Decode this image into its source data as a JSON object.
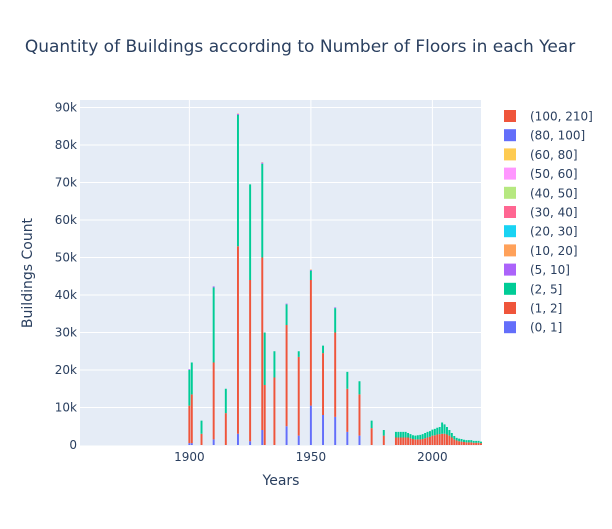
{
  "chart_data": {
    "type": "bar",
    "barmode": "stack",
    "title": "Quantity of Buildings according to Number of Floors in each Year",
    "xlabel": "Years",
    "ylabel": "Buildings Count",
    "xlim": [
      1855,
      2020
    ],
    "ylim": [
      0,
      92000
    ],
    "x_ticks": [
      1900,
      1950,
      2000
    ],
    "y_ticks": [
      0,
      10000,
      20000,
      30000,
      40000,
      50000,
      60000,
      70000,
      80000,
      90000
    ],
    "y_tick_labels": [
      "0",
      "10k",
      "20k",
      "30k",
      "40k",
      "50k",
      "60k",
      "70k",
      "80k",
      "90k"
    ],
    "grid": true,
    "legend_position": "right",
    "series": [
      {
        "name": "(0, 1]",
        "color": "#636efa",
        "points": [
          [
            1900,
            500
          ],
          [
            1901,
            500
          ],
          [
            1910,
            1500
          ],
          [
            1920,
            3000
          ],
          [
            1925,
            1000
          ],
          [
            1930,
            4000
          ],
          [
            1940,
            5000
          ],
          [
            1945,
            2500
          ],
          [
            1950,
            10500
          ],
          [
            1955,
            8000
          ],
          [
            1960,
            7500
          ],
          [
            1965,
            3500
          ],
          [
            1970,
            2500
          ]
        ]
      },
      {
        "name": "(1, 2]",
        "color": "#ef553b",
        "points": [
          [
            1900,
            10000
          ],
          [
            1901,
            13000
          ],
          [
            1905,
            3000
          ],
          [
            1910,
            20500
          ],
          [
            1915,
            8500
          ],
          [
            1920,
            50000
          ],
          [
            1925,
            43000
          ],
          [
            1930,
            46000
          ],
          [
            1931,
            16000
          ],
          [
            1935,
            18000
          ],
          [
            1940,
            27000
          ],
          [
            1945,
            21000
          ],
          [
            1950,
            33500
          ],
          [
            1955,
            16500
          ],
          [
            1960,
            22500
          ],
          [
            1965,
            11500
          ],
          [
            1970,
            11000
          ],
          [
            1975,
            4500
          ],
          [
            1980,
            2500
          ],
          [
            1985,
            2000
          ],
          [
            1986,
            2000
          ],
          [
            1987,
            2000
          ],
          [
            1988,
            2000
          ],
          [
            1989,
            2000
          ],
          [
            1990,
            2000
          ],
          [
            1991,
            1800
          ],
          [
            1992,
            1600
          ],
          [
            1993,
            1500
          ],
          [
            1994,
            1500
          ],
          [
            1995,
            1500
          ],
          [
            1996,
            1600
          ],
          [
            1997,
            1800
          ],
          [
            1998,
            2000
          ],
          [
            1999,
            2200
          ],
          [
            2000,
            2500
          ],
          [
            2001,
            2600
          ],
          [
            2002,
            2800
          ],
          [
            2003,
            2900
          ],
          [
            2004,
            3000
          ],
          [
            2005,
            3000
          ],
          [
            2006,
            2800
          ],
          [
            2007,
            2500
          ],
          [
            2008,
            2000
          ],
          [
            2009,
            1500
          ],
          [
            2010,
            1200
          ],
          [
            2011,
            1000
          ],
          [
            2012,
            900
          ],
          [
            2013,
            800
          ],
          [
            2014,
            700
          ],
          [
            2015,
            700
          ],
          [
            2016,
            700
          ],
          [
            2017,
            600
          ],
          [
            2018,
            600
          ],
          [
            2019,
            600
          ],
          [
            2020,
            500
          ]
        ]
      },
      {
        "name": "(2, 5]",
        "color": "#00cc96",
        "points": [
          [
            1900,
            9500
          ],
          [
            1901,
            8500
          ],
          [
            1905,
            3500
          ],
          [
            1910,
            20000
          ],
          [
            1915,
            6500
          ],
          [
            1920,
            35000
          ],
          [
            1925,
            25500
          ],
          [
            1930,
            25000
          ],
          [
            1931,
            14000
          ],
          [
            1935,
            7000
          ],
          [
            1940,
            5500
          ],
          [
            1945,
            1500
          ],
          [
            1950,
            2500
          ],
          [
            1955,
            2000
          ],
          [
            1960,
            6500
          ],
          [
            1965,
            4500
          ],
          [
            1970,
            3500
          ],
          [
            1975,
            2000
          ],
          [
            1980,
            1500
          ],
          [
            1985,
            1500
          ],
          [
            1986,
            1500
          ],
          [
            1987,
            1500
          ],
          [
            1988,
            1500
          ],
          [
            1989,
            1500
          ],
          [
            1990,
            1200
          ],
          [
            1991,
            1100
          ],
          [
            1992,
            1000
          ],
          [
            1993,
            1000
          ],
          [
            1994,
            1100
          ],
          [
            1995,
            1200
          ],
          [
            1996,
            1300
          ],
          [
            1997,
            1400
          ],
          [
            1998,
            1500
          ],
          [
            1999,
            1500
          ],
          [
            2000,
            1600
          ],
          [
            2001,
            1700
          ],
          [
            2002,
            1800
          ],
          [
            2003,
            1900
          ],
          [
            2004,
            3000
          ],
          [
            2005,
            2500
          ],
          [
            2006,
            2000
          ],
          [
            2007,
            1500
          ],
          [
            2008,
            1200
          ],
          [
            2009,
            900
          ],
          [
            2010,
            700
          ],
          [
            2011,
            700
          ],
          [
            2012,
            700
          ],
          [
            2013,
            600
          ],
          [
            2014,
            600
          ],
          [
            2015,
            600
          ],
          [
            2016,
            600
          ],
          [
            2017,
            500
          ],
          [
            2018,
            500
          ],
          [
            2019,
            500
          ],
          [
            2020,
            400
          ]
        ]
      },
      {
        "name": "(5, 10]",
        "color": "#ab63fa",
        "points": [
          [
            1900,
            200
          ],
          [
            1910,
            300
          ],
          [
            1920,
            300
          ],
          [
            1930,
            300
          ],
          [
            1940,
            200
          ],
          [
            1950,
            200
          ],
          [
            1960,
            200
          ]
        ]
      },
      {
        "name": "(10, 20]",
        "color": "#ffa15a",
        "points": [
          [
            1920,
            100
          ],
          [
            1930,
            100
          ],
          [
            1950,
            100
          ]
        ]
      },
      {
        "name": "(20, 30]",
        "color": "#19d3f3",
        "points": []
      },
      {
        "name": "(30, 40]",
        "color": "#ff6692",
        "points": []
      },
      {
        "name": "(40, 50]",
        "color": "#b6e880",
        "points": []
      },
      {
        "name": "(50, 60]",
        "color": "#ff97ff",
        "points": []
      },
      {
        "name": "(60, 80]",
        "color": "#fecb52",
        "points": []
      },
      {
        "name": "(80, 100]",
        "color": "#636efa",
        "points": []
      },
      {
        "name": "(100, 210]",
        "color": "#ef553b",
        "points": []
      }
    ]
  }
}
